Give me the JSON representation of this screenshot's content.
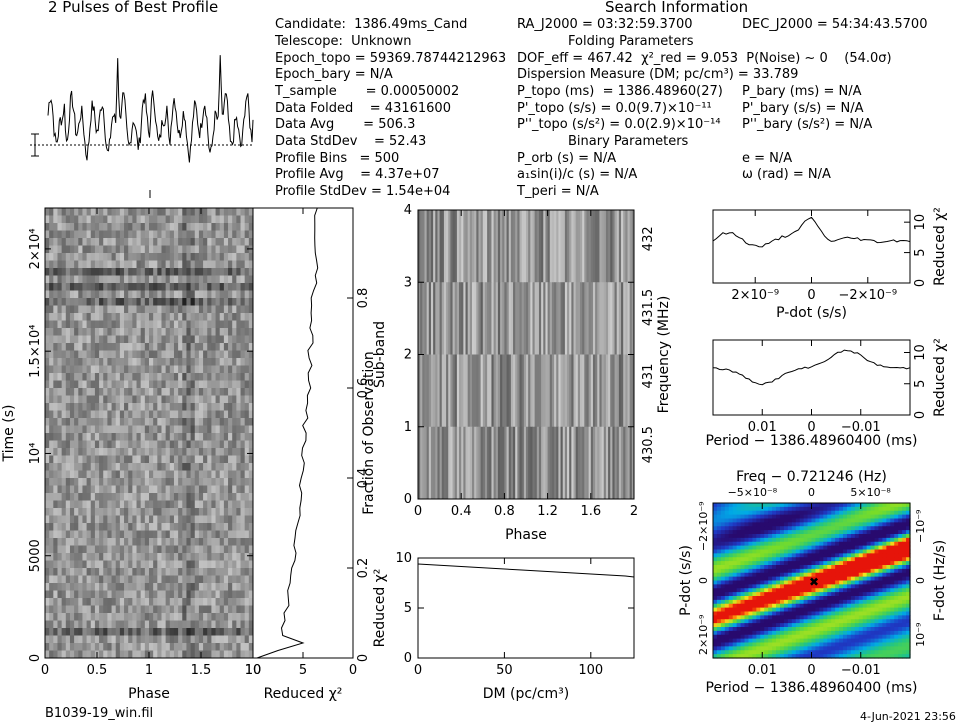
{
  "header": {
    "title": "2 Pulses of Best Profile",
    "search_info": "Search Information",
    "folding_params": "Folding Parameters",
    "binary_params": "Binary Parameters"
  },
  "info": {
    "candidate": "Candidate:  1386.49ms_Cand",
    "telescope": "Telescope:  Unknown",
    "epoch_topo": "Epoch_topo = 59369.78744212963",
    "epoch_bary": "Epoch_bary = N/A",
    "t_sample": "T_sample       = 0.00050002",
    "data_folded": "Data Folded    = 43161600",
    "data_avg": "Data Avg       = 506.3",
    "data_stddev": "Data StdDev    = 52.43",
    "profile_bins": "Profile Bins   = 500",
    "profile_avg": "Profile Avg    = 4.37e+07",
    "profile_stddev": "Profile StdDev = 1.54e+04"
  },
  "search": {
    "ra": "RA_J2000 = 03:32:59.3700",
    "dec": "DEC_J2000 = 54:34:43.5700",
    "dof": "DOF_eff = 467.42  χ²_red = 9.053  P(Noise) ~ 0    (54.0σ)",
    "dm": "Dispersion Measure (DM; pc/cm³) = 33.789",
    "p_topo": "P_topo (ms)  = 1386.48960(27)",
    "p_bary": "P_bary (ms) = N/A",
    "pd_topo": "P'_topo (s/s) = 0.0(9.7)×10⁻¹¹",
    "pd_bary": "P'_bary (s/s) = N/A",
    "pdd_topo": "P''_topo (s/s²) = 0.0(2.9)×10⁻¹⁴",
    "pdd_bary": "P''_bary (s/s²) = N/A",
    "p_orb": "P_orb (s) = N/A",
    "e": "e = N/A",
    "a1sini": "a₁sin(i)/c (s) = N/A",
    "omega": "ω (rad) = N/A",
    "t_peri": "T_peri = N/A"
  },
  "footer": {
    "filename": "B1039-19_win.fil",
    "date": "4-Jun-2021 23:56"
  },
  "axes": {
    "phase": "Phase",
    "time": "Time (s)",
    "reduced_chi2": "Reduced χ²",
    "fraction_obs": "Fraction of Observation",
    "sub_band": "Sub-band",
    "frequency": "Frequency (MHz)",
    "dm": "DM (pc/cm³)",
    "pdot": "P-dot (s/s)",
    "period": "Period − 1386.48960400 (ms)",
    "freq": "Freq − 0.721246 (Hz)",
    "fdot": "F-dot (Hz/s)"
  },
  "chart_data": [
    {
      "type": "line",
      "title": "2 Pulses of Best Profile",
      "xlim": [
        0,
        2
      ],
      "note": "Profile shown twice (2 pulses); main peak near phase 0.68 and 1.68"
    },
    {
      "type": "heatmap",
      "name": "time-phase",
      "xlabel": "Phase",
      "ylabel": "Time (s)",
      "xlim": [
        0,
        1
      ],
      "ylim": [
        0,
        22000
      ],
      "xticks": [
        "0",
        "0.5",
        "1",
        "1.5",
        "10"
      ],
      "yticks": [
        "0",
        "5000",
        "10⁴",
        "1.5×10⁴",
        "2×10⁴"
      ]
    },
    {
      "type": "line",
      "name": "reduced-chi2-vs-time",
      "xlabel": "Reduced χ²",
      "ylabel": "Fraction of Observation",
      "xlim": [
        10,
        0
      ],
      "ylim": [
        0,
        1
      ],
      "xticks": [
        "10",
        "5",
        "0"
      ],
      "yticks": [
        "0",
        "0.2",
        "0.4",
        "0.6",
        "0.8"
      ]
    },
    {
      "type": "heatmap",
      "name": "subband-phase",
      "xlabel": "Phase",
      "ylabel": "Sub-band",
      "xlim": [
        0,
        2
      ],
      "ylim": [
        0,
        4
      ],
      "xticks": [
        "0",
        "0.4",
        "0.8",
        "1.2",
        "1.6",
        "2"
      ],
      "yticks": [
        "0",
        "1",
        "2",
        "3",
        "4"
      ],
      "right_ticks": [
        "430.5",
        "431",
        "431.5",
        "432"
      ]
    },
    {
      "type": "line",
      "name": "reduced-chi2-vs-dm",
      "xlabel": "DM (pc/cm³)",
      "ylabel": "Reduced χ²",
      "xlim": [
        0,
        125
      ],
      "ylim": [
        0,
        10
      ],
      "xticks": [
        "0",
        "50",
        "100"
      ],
      "yticks": [
        "0",
        "5",
        "10"
      ],
      "x": [
        0,
        10,
        20,
        30,
        40,
        50,
        60,
        70,
        80,
        90,
        100,
        110,
        120,
        125
      ],
      "y": [
        9.4,
        9.3,
        9.2,
        9.1,
        9.0,
        8.9,
        8.8,
        8.7,
        8.6,
        8.5,
        8.4,
        8.3,
        8.2,
        8.1
      ]
    },
    {
      "type": "line",
      "name": "reduced-chi2-vs-pdot",
      "xlabel": "P-dot (s/s)",
      "ylabel": "Reduced χ²",
      "xlim": [
        3.5e-09,
        -3.5e-09
      ],
      "ylim": [
        0,
        12
      ],
      "xticks": [
        "2×10⁻⁹",
        "0",
        "−2×10⁻⁹"
      ],
      "yticks": [
        "0",
        "5",
        "10"
      ]
    },
    {
      "type": "line",
      "name": "reduced-chi2-vs-period",
      "xlabel": "Period − 1386.48960400 (ms)",
      "ylabel": "Reduced χ²",
      "xlim": [
        0.02,
        -0.02
      ],
      "ylim": [
        0,
        12
      ],
      "xticks": [
        "0.01",
        "0",
        "−0.01"
      ],
      "yticks": [
        "0",
        "5",
        "10"
      ]
    },
    {
      "type": "heatmap",
      "name": "period-pdot",
      "xlabel": "Period − 1386.48960400 (ms)",
      "ylabel": "P-dot (s/s)",
      "top_label": "Freq − 0.721246 (Hz)",
      "right_label": "F-dot (Hz/s)",
      "xticks": [
        "0.01",
        "0",
        "−0.01"
      ],
      "top_ticks": [
        "−5×10⁻⁸",
        "0",
        "5×10⁻⁸"
      ],
      "yticks": [
        "2×10⁻⁹",
        "0",
        "−2×10⁻⁹"
      ],
      "right_ticks": [
        "−10⁻⁹",
        "0",
        "10⁻⁹"
      ]
    }
  ]
}
